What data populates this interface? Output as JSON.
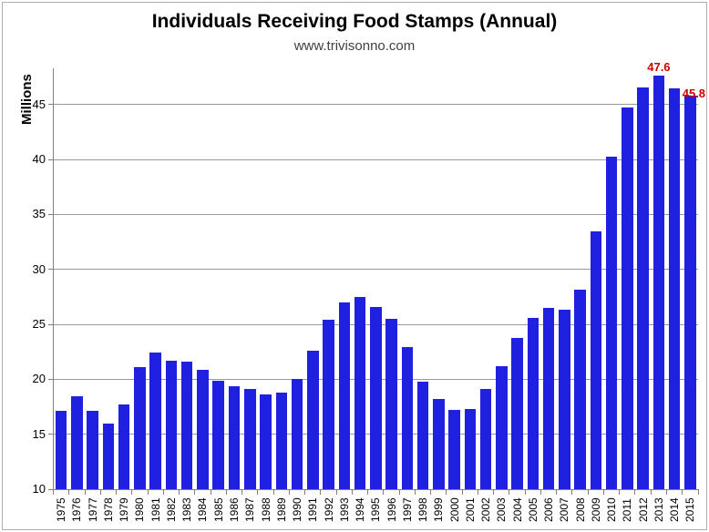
{
  "page": {
    "background": "#ffffff",
    "border_color": "#adadad"
  },
  "chart_data": {
    "type": "bar",
    "title": "Individuals Receiving Food Stamps (Annual)",
    "subtitle": "www.trivisonno.com",
    "xlabel": "",
    "ylabel": "Millions",
    "categories": [
      "1975",
      "1976",
      "1977",
      "1978",
      "1979",
      "1980",
      "1981",
      "1982",
      "1983",
      "1984",
      "1985",
      "1986",
      "1987",
      "1988",
      "1989",
      "1990",
      "1991",
      "1992",
      "1993",
      "1994",
      "1995",
      "1996",
      "1997",
      "1998",
      "1999",
      "2000",
      "2001",
      "2002",
      "2003",
      "2004",
      "2005",
      "2006",
      "2007",
      "2008",
      "2009",
      "2010",
      "2011",
      "2012",
      "2013",
      "2014",
      "2015"
    ],
    "values": [
      17.1,
      18.5,
      17.1,
      16.0,
      17.7,
      21.1,
      22.4,
      21.7,
      21.6,
      20.9,
      19.9,
      19.4,
      19.1,
      18.6,
      18.8,
      20.0,
      22.6,
      25.4,
      27.0,
      27.5,
      26.6,
      25.5,
      22.9,
      19.8,
      18.2,
      17.2,
      17.3,
      19.1,
      21.2,
      23.8,
      25.6,
      26.5,
      26.3,
      28.2,
      33.5,
      40.3,
      44.7,
      46.6,
      47.6,
      46.5,
      45.8
    ],
    "ylim": [
      10,
      48.3
    ],
    "yticks": [
      10,
      15,
      20,
      25,
      30,
      35,
      40,
      45
    ],
    "grid": true,
    "legend": false,
    "bar_color": "#2020e0",
    "axis_color": "#808080",
    "grid_color": "#999999",
    "tick_label_color": "#000000",
    "subtitle_color": "#404040",
    "annotation_color": "#cc0000",
    "annotations": [
      {
        "category": "2013",
        "text": "47.6"
      },
      {
        "category": "2015",
        "text": "45.8"
      }
    ]
  }
}
